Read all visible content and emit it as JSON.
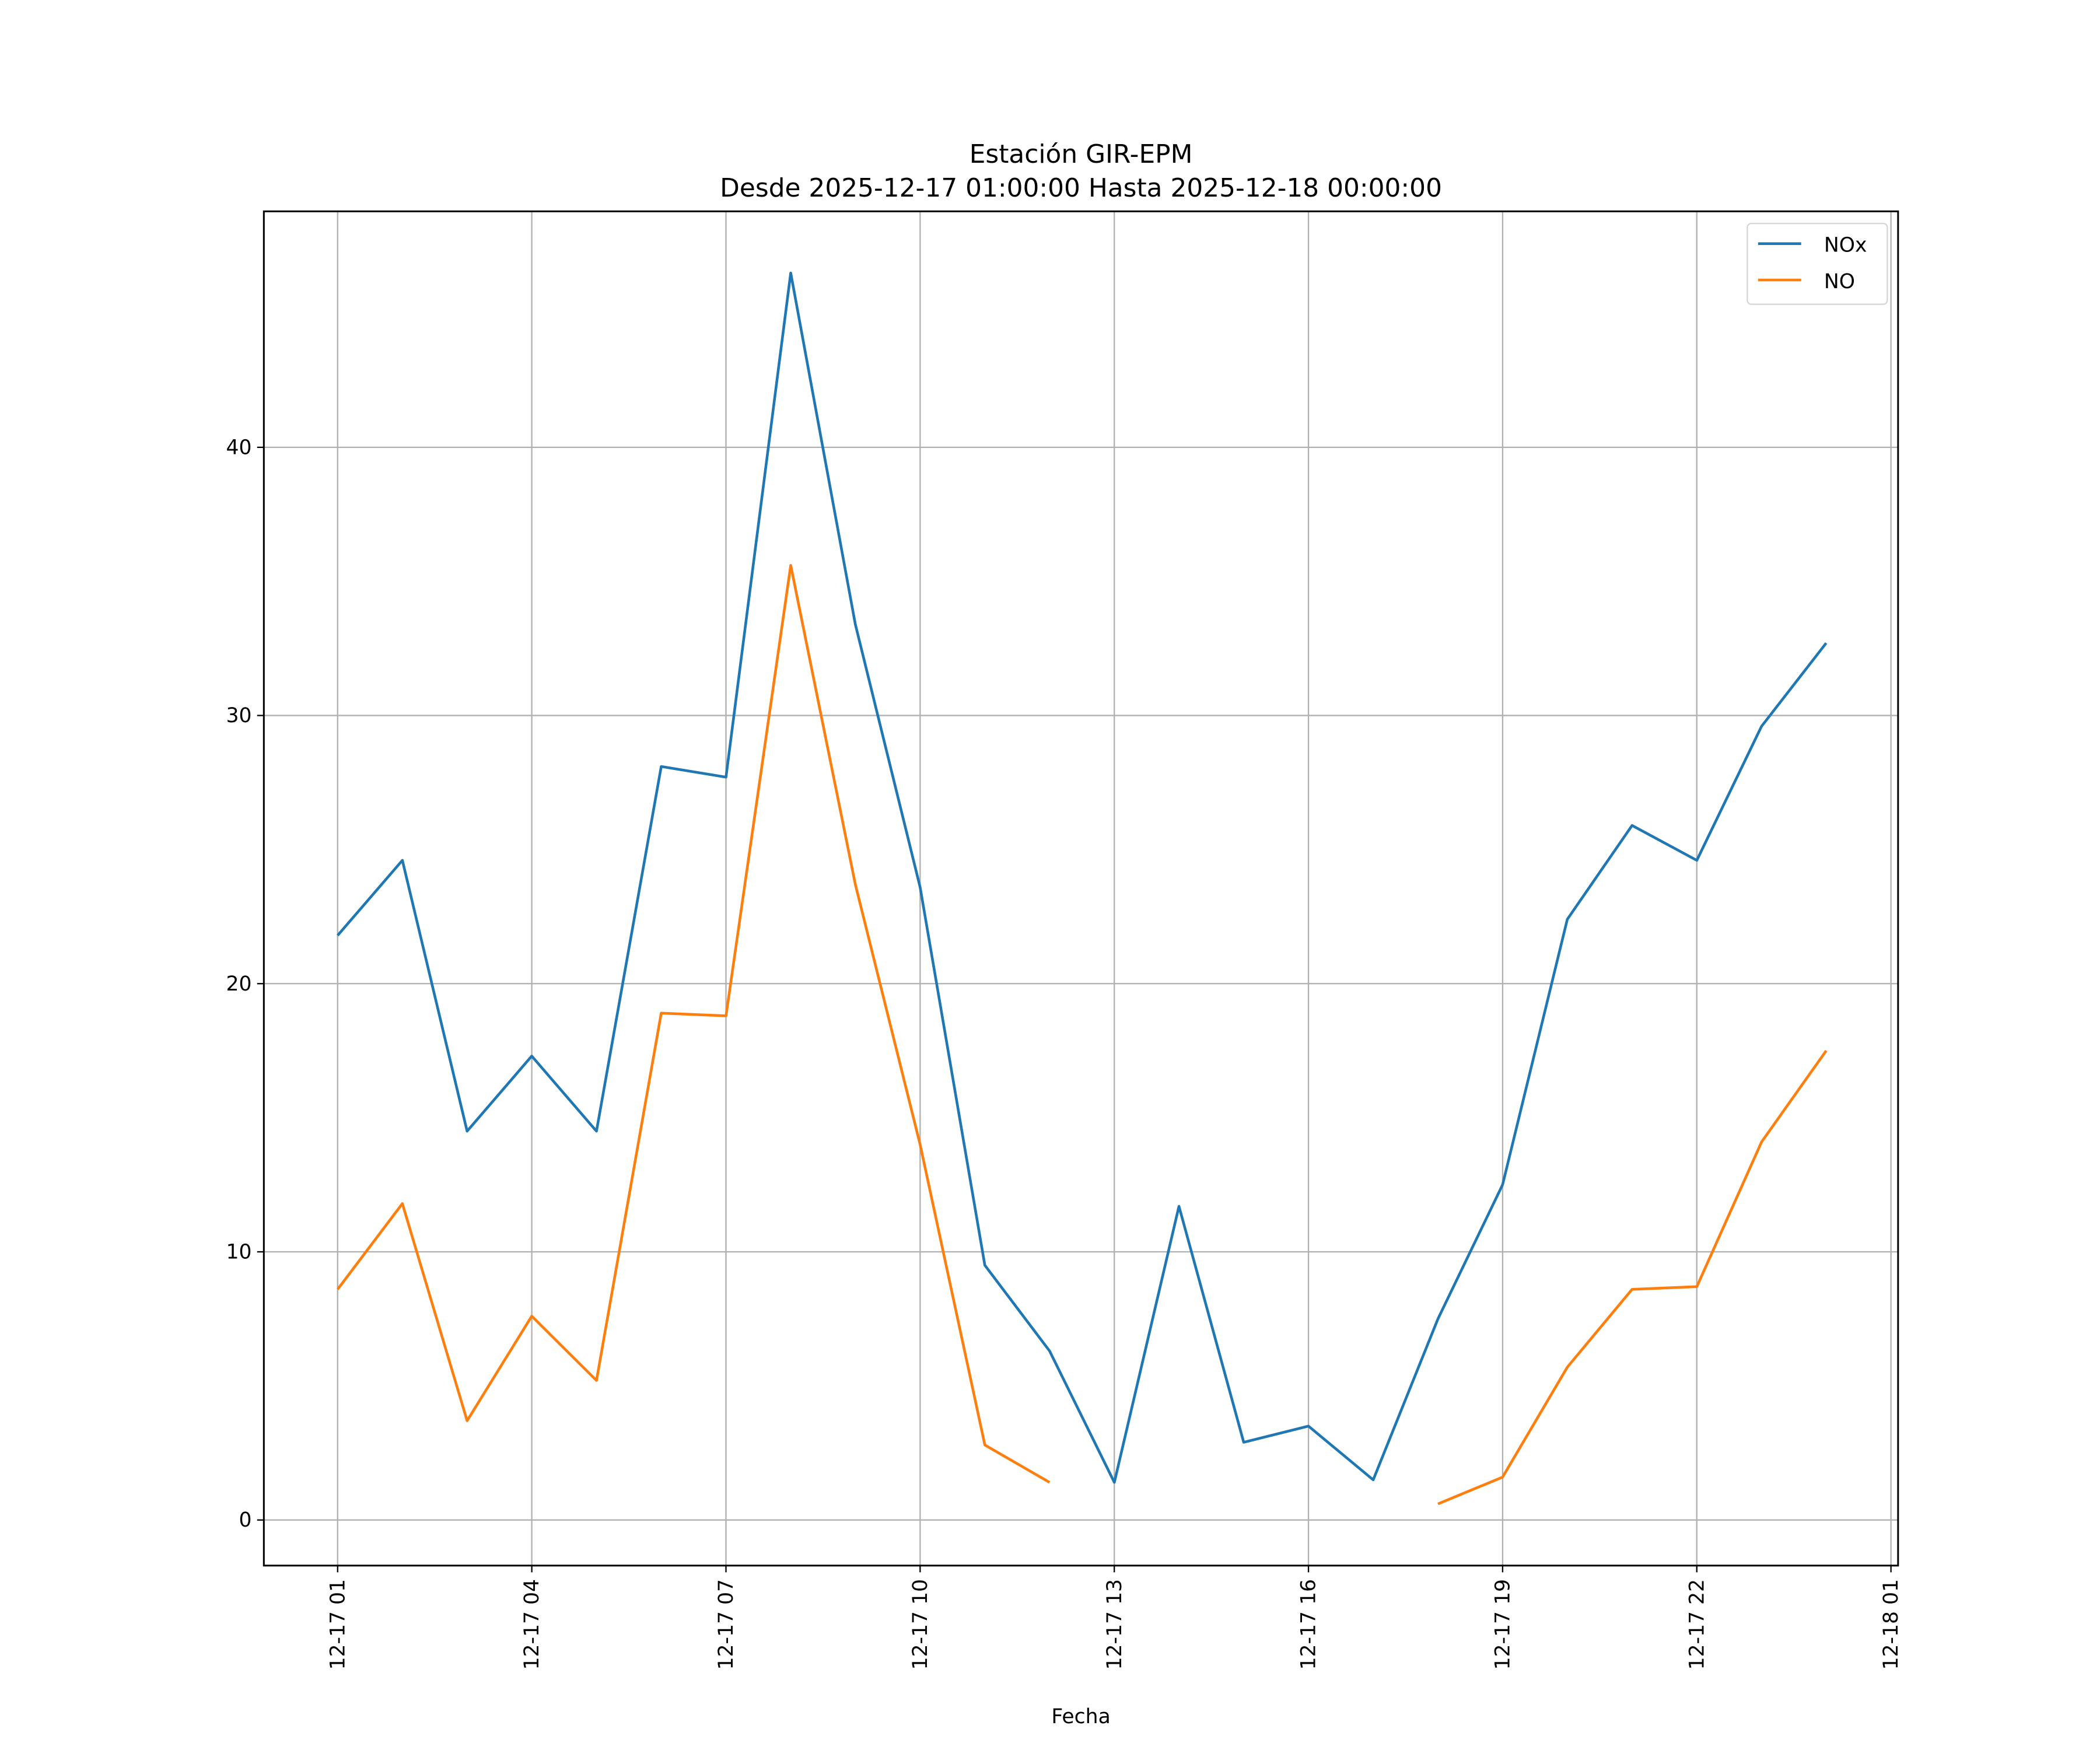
{
  "chart_data": {
    "type": "line",
    "title": "Estación GIR-EPM",
    "subtitle": "Desde 2025-12-17 01:00:00 Hasta 2025-12-18 00:00:00",
    "xlabel": "Fecha",
    "ylabel": "",
    "x_hours": [
      1,
      2,
      3,
      4,
      5,
      6,
      7,
      8,
      9,
      10,
      11,
      12,
      13,
      14,
      15,
      16,
      17,
      18,
      19,
      20,
      21,
      22,
      23,
      24
    ],
    "xlim_hours": [
      -0.14,
      25.11
    ],
    "ylim": [
      -1.7,
      48.8
    ],
    "grid": true,
    "legend_position": "top-right",
    "x_ticks": [
      {
        "hour": 1,
        "label": "12-17 01"
      },
      {
        "hour": 4,
        "label": "12-17 04"
      },
      {
        "hour": 7,
        "label": "12-17 07"
      },
      {
        "hour": 10,
        "label": "12-17 10"
      },
      {
        "hour": 13,
        "label": "12-17 13"
      },
      {
        "hour": 16,
        "label": "12-17 16"
      },
      {
        "hour": 19,
        "label": "12-17 19"
      },
      {
        "hour": 22,
        "label": "12-17 22"
      },
      {
        "hour": 25,
        "label": "12-18 01"
      }
    ],
    "y_ticks": [
      {
        "value": 0,
        "label": "0"
      },
      {
        "value": 10,
        "label": "10"
      },
      {
        "value": 20,
        "label": "20"
      },
      {
        "value": 30,
        "label": "30"
      },
      {
        "value": 40,
        "label": "40"
      }
    ],
    "series": [
      {
        "name": "NOx",
        "color": "#1f77b4",
        "values": [
          21.8,
          24.6,
          14.5,
          17.3,
          14.5,
          28.1,
          27.7,
          46.5,
          33.4,
          23.6,
          9.5,
          6.3,
          1.4,
          11.7,
          2.9,
          3.5,
          1.5,
          7.5,
          12.5,
          22.4,
          25.9,
          24.6,
          29.6,
          32.7
        ]
      },
      {
        "name": "NO",
        "color": "#ff7f0e",
        "values": [
          8.6,
          11.8,
          3.7,
          7.6,
          5.2,
          18.9,
          18.8,
          35.6,
          23.7,
          14.0,
          2.8,
          1.4,
          null,
          null,
          null,
          null,
          null,
          0.6,
          1.6,
          5.7,
          8.6,
          8.7,
          14.1,
          17.5
        ]
      }
    ]
  }
}
